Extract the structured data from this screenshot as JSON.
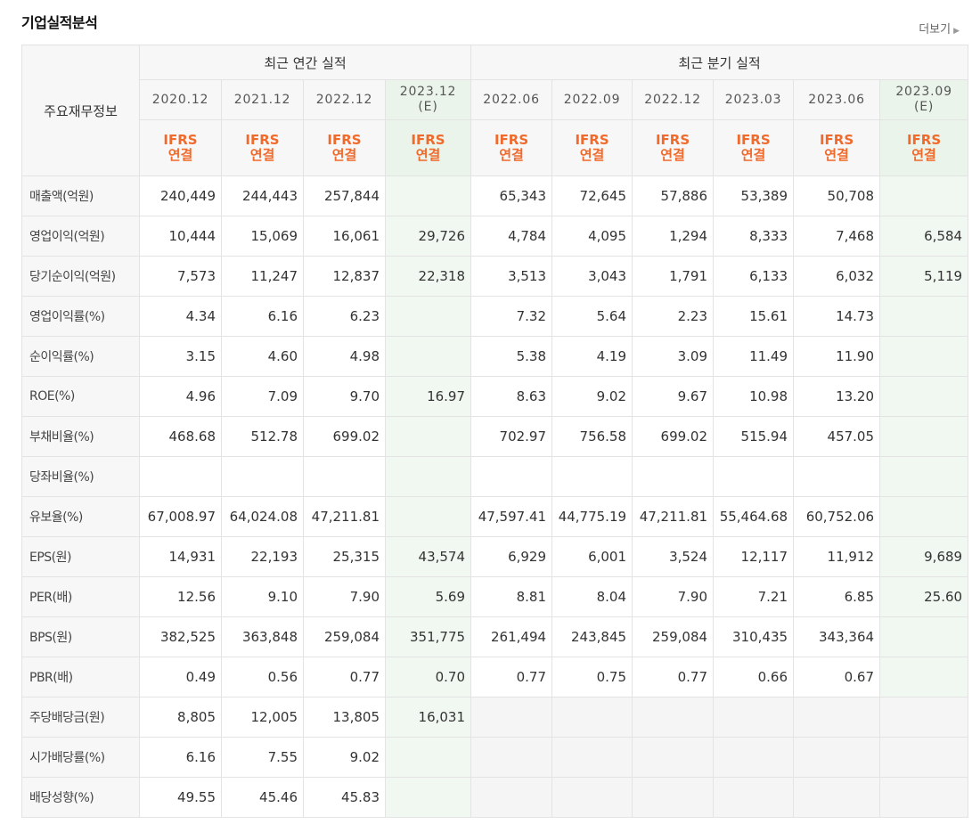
{
  "section_title": "기업실적분석",
  "more_link": "더보기",
  "header": {
    "row_label": "주요재무정보",
    "annual_group": "최근 연간 실적",
    "quarterly_group": "최근 분기 실적",
    "annual_periods": [
      {
        "date": "2020.12",
        "est": ""
      },
      {
        "date": "2021.12",
        "est": ""
      },
      {
        "date": "2022.12",
        "est": ""
      },
      {
        "date": "2023.12",
        "est": "(E)"
      }
    ],
    "quarterly_periods": [
      {
        "date": "2022.06",
        "est": ""
      },
      {
        "date": "2022.09",
        "est": ""
      },
      {
        "date": "2022.12",
        "est": ""
      },
      {
        "date": "2023.03",
        "est": ""
      },
      {
        "date": "2023.06",
        "est": ""
      },
      {
        "date": "2023.09",
        "est": "(E)"
      }
    ],
    "standard_line1": "IFRS",
    "standard_line2": "연결"
  },
  "rows": [
    {
      "label": "매출액(억원)",
      "values": [
        "240,449",
        "244,443",
        "257,844",
        "",
        "65,343",
        "72,645",
        "57,886",
        "53,389",
        "50,708",
        ""
      ]
    },
    {
      "label": "영업이익(억원)",
      "values": [
        "10,444",
        "15,069",
        "16,061",
        "29,726",
        "4,784",
        "4,095",
        "1,294",
        "8,333",
        "7,468",
        "6,584"
      ]
    },
    {
      "label": "당기순이익(억원)",
      "values": [
        "7,573",
        "11,247",
        "12,837",
        "22,318",
        "3,513",
        "3,043",
        "1,791",
        "6,133",
        "6,032",
        "5,119"
      ]
    },
    {
      "label": "영업이익률(%)",
      "values": [
        "4.34",
        "6.16",
        "6.23",
        "",
        "7.32",
        "5.64",
        "2.23",
        "15.61",
        "14.73",
        ""
      ]
    },
    {
      "label": "순이익률(%)",
      "values": [
        "3.15",
        "4.60",
        "4.98",
        "",
        "5.38",
        "4.19",
        "3.09",
        "11.49",
        "11.90",
        ""
      ]
    },
    {
      "label": "ROE(%)",
      "values": [
        "4.96",
        "7.09",
        "9.70",
        "16.97",
        "8.63",
        "9.02",
        "9.67",
        "10.98",
        "13.20",
        ""
      ]
    },
    {
      "label": "부채비율(%)",
      "values": [
        "468.68",
        "512.78",
        "699.02",
        "",
        "702.97",
        "756.58",
        "699.02",
        "515.94",
        "457.05",
        ""
      ]
    },
    {
      "label": "당좌비율(%)",
      "values": [
        "",
        "",
        "",
        "",
        "",
        "",
        "",
        "",
        "",
        ""
      ]
    },
    {
      "label": "유보율(%)",
      "values": [
        "67,008.97",
        "64,024.08",
        "47,211.81",
        "",
        "47,597.41",
        "44,775.19",
        "47,211.81",
        "55,464.68",
        "60,752.06",
        ""
      ]
    },
    {
      "label": "EPS(원)",
      "values": [
        "14,931",
        "22,193",
        "25,315",
        "43,574",
        "6,929",
        "6,001",
        "3,524",
        "12,117",
        "11,912",
        "9,689"
      ]
    },
    {
      "label": "PER(배)",
      "values": [
        "12.56",
        "9.10",
        "7.90",
        "5.69",
        "8.81",
        "8.04",
        "7.90",
        "7.21",
        "6.85",
        "25.60"
      ]
    },
    {
      "label": "BPS(원)",
      "values": [
        "382,525",
        "363,848",
        "259,084",
        "351,775",
        "261,494",
        "243,845",
        "259,084",
        "310,435",
        "343,364",
        ""
      ]
    },
    {
      "label": "PBR(배)",
      "values": [
        "0.49",
        "0.56",
        "0.77",
        "0.70",
        "0.77",
        "0.75",
        "0.77",
        "0.66",
        "0.67",
        ""
      ]
    },
    {
      "label": "주당배당금(원)",
      "values": [
        "8,805",
        "12,005",
        "13,805",
        "16,031",
        "",
        "",
        "",
        "",
        "",
        ""
      ]
    },
    {
      "label": "시가배당률(%)",
      "values": [
        "6.16",
        "7.55",
        "9.02",
        "",
        "",
        "",
        "",
        "",
        "",
        ""
      ]
    },
    {
      "label": "배당성향(%)",
      "values": [
        "49.55",
        "45.46",
        "45.83",
        "",
        "",
        "",
        "",
        "",
        "",
        ""
      ]
    }
  ]
}
